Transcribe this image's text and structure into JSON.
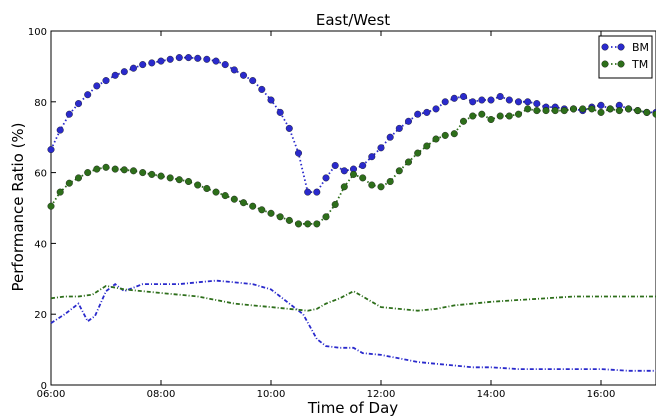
{
  "chart_data": {
    "type": "line",
    "title": "East/West",
    "xlabel": "Time of Day",
    "ylabel": "Performance Ratio (%)",
    "xlim": [
      "06:00",
      "17:00"
    ],
    "ylim": [
      0,
      100
    ],
    "x_ticks": [
      "06:00",
      "08:00",
      "10:00",
      "12:00",
      "14:00",
      "16:00"
    ],
    "y_ticks": [
      "0",
      "20",
      "40",
      "60",
      "80",
      "100"
    ],
    "grid": false,
    "legend_position": "top-right",
    "series": [
      {
        "name": "BM",
        "color": "#2a2acc",
        "marker": "circle",
        "linestyle": "dotted",
        "x": [
          "06:00",
          "06:10",
          "06:20",
          "06:30",
          "06:40",
          "06:50",
          "07:00",
          "07:10",
          "07:20",
          "07:30",
          "07:40",
          "07:50",
          "08:00",
          "08:10",
          "08:20",
          "08:30",
          "08:40",
          "08:50",
          "09:00",
          "09:10",
          "09:20",
          "09:30",
          "09:40",
          "09:50",
          "10:00",
          "10:10",
          "10:20",
          "10:30",
          "10:40",
          "10:50",
          "11:00",
          "11:10",
          "11:20",
          "11:30",
          "11:40",
          "11:50",
          "12:00",
          "12:10",
          "12:20",
          "12:30",
          "12:40",
          "12:50",
          "13:00",
          "13:10",
          "13:20",
          "13:30",
          "13:40",
          "13:50",
          "14:00",
          "14:10",
          "14:20",
          "14:30",
          "14:40",
          "14:50",
          "15:00",
          "15:10",
          "15:20",
          "15:30",
          "15:40",
          "15:50",
          "16:00",
          "16:10",
          "16:20",
          "16:30",
          "16:40",
          "16:50",
          "17:00"
        ],
        "y": [
          66.5,
          72,
          76.5,
          79.5,
          82,
          84.5,
          86,
          87.5,
          88.5,
          89.5,
          90.5,
          91,
          91.5,
          92,
          92.5,
          92.5,
          92.3,
          92,
          91.5,
          90.5,
          89,
          87.5,
          86,
          83.5,
          80.5,
          77,
          72.5,
          65.5,
          54.5,
          54.5,
          58.5,
          62,
          60.5,
          61,
          62,
          64.5,
          67,
          70,
          72.5,
          74.5,
          76.5,
          77,
          78,
          80,
          81,
          81.5,
          80,
          80.5,
          80.5,
          81.5,
          80.5,
          80,
          80,
          79.5,
          78.5,
          78.5,
          78,
          78,
          77.5,
          78.5,
          79,
          78,
          79,
          78,
          77.5,
          77,
          77
        ]
      },
      {
        "name": "TM",
        "color": "#2d6e1a",
        "marker": "circle",
        "linestyle": "dotted",
        "x": [
          "06:00",
          "06:10",
          "06:20",
          "06:30",
          "06:40",
          "06:50",
          "07:00",
          "07:10",
          "07:20",
          "07:30",
          "07:40",
          "07:50",
          "08:00",
          "08:10",
          "08:20",
          "08:30",
          "08:40",
          "08:50",
          "09:00",
          "09:10",
          "09:20",
          "09:30",
          "09:40",
          "09:50",
          "10:00",
          "10:10",
          "10:20",
          "10:30",
          "10:40",
          "10:50",
          "11:00",
          "11:10",
          "11:20",
          "11:30",
          "11:40",
          "11:50",
          "12:00",
          "12:10",
          "12:20",
          "12:30",
          "12:40",
          "12:50",
          "13:00",
          "13:10",
          "13:20",
          "13:30",
          "13:40",
          "13:50",
          "14:00",
          "14:10",
          "14:20",
          "14:30",
          "14:40",
          "14:50",
          "15:00",
          "15:10",
          "15:20",
          "15:30",
          "15:40",
          "15:50",
          "16:00",
          "16:10",
          "16:20",
          "16:30",
          "16:40",
          "16:50",
          "17:00"
        ],
        "y": [
          50.5,
          54.5,
          57,
          58.5,
          60,
          61,
          61.5,
          61,
          60.8,
          60.5,
          60,
          59.5,
          59,
          58.5,
          58,
          57.5,
          56.5,
          55.5,
          54.5,
          53.5,
          52.5,
          51.5,
          50.5,
          49.5,
          48.5,
          47.5,
          46.5,
          45.5,
          45.5,
          45.5,
          47.5,
          51,
          56,
          59.5,
          58.5,
          56.5,
          56,
          57.5,
          60.5,
          63,
          65.5,
          67.5,
          69.5,
          70.5,
          71,
          74.5,
          76,
          76.5,
          75,
          76,
          76,
          76.5,
          78,
          77.5,
          77.5,
          77.5,
          77.5,
          78,
          78,
          78,
          77,
          78,
          77.5,
          78,
          77.5,
          77,
          76.5
        ]
      },
      {
        "name": "",
        "color": "#2a2acc",
        "marker": "none",
        "linestyle": "dashdot",
        "x": [
          "06:00",
          "06:15",
          "06:30",
          "06:40",
          "06:48",
          "07:00",
          "07:10",
          "07:20",
          "07:40",
          "08:00",
          "08:20",
          "08:40",
          "09:00",
          "09:20",
          "09:40",
          "10:00",
          "10:10",
          "10:20",
          "10:35",
          "10:50",
          "11:00",
          "11:15",
          "11:30",
          "11:40",
          "12:00",
          "12:20",
          "12:40",
          "13:00",
          "13:20",
          "13:40",
          "14:00",
          "14:30",
          "15:00",
          "15:30",
          "16:00",
          "16:30",
          "17:00"
        ],
        "y": [
          17.5,
          20,
          23,
          18,
          19.5,
          26.5,
          28.5,
          26.5,
          28.5,
          28.5,
          28.5,
          29,
          29.5,
          29,
          28.5,
          27,
          25,
          23,
          20,
          13,
          11,
          10.5,
          10.5,
          9,
          8.5,
          7.5,
          6.5,
          6,
          5.5,
          5,
          5,
          4.5,
          4.5,
          4.5,
          4.5,
          4,
          4
        ]
      },
      {
        "name": "",
        "color": "#2d6e1a",
        "marker": "none",
        "linestyle": "dashdot",
        "x": [
          "06:00",
          "06:15",
          "06:30",
          "06:45",
          "07:00",
          "07:10",
          "07:20",
          "07:40",
          "08:00",
          "08:20",
          "08:40",
          "09:00",
          "09:20",
          "09:40",
          "10:00",
          "10:20",
          "10:40",
          "10:50",
          "11:00",
          "11:15",
          "11:30",
          "11:40",
          "12:00",
          "12:20",
          "12:40",
          "13:00",
          "13:20",
          "13:40",
          "14:00",
          "14:30",
          "15:00",
          "15:30",
          "16:00",
          "16:30",
          "17:00"
        ],
        "y": [
          24.5,
          25,
          25,
          25.5,
          28,
          27.5,
          27,
          26.5,
          26,
          25.5,
          25,
          24,
          23,
          22.5,
          22,
          21.5,
          21,
          21.5,
          23,
          24.5,
          26.5,
          25,
          22,
          21.5,
          21,
          21.5,
          22.5,
          23,
          23.5,
          24,
          24.5,
          25,
          25,
          25,
          25
        ]
      }
    ]
  }
}
